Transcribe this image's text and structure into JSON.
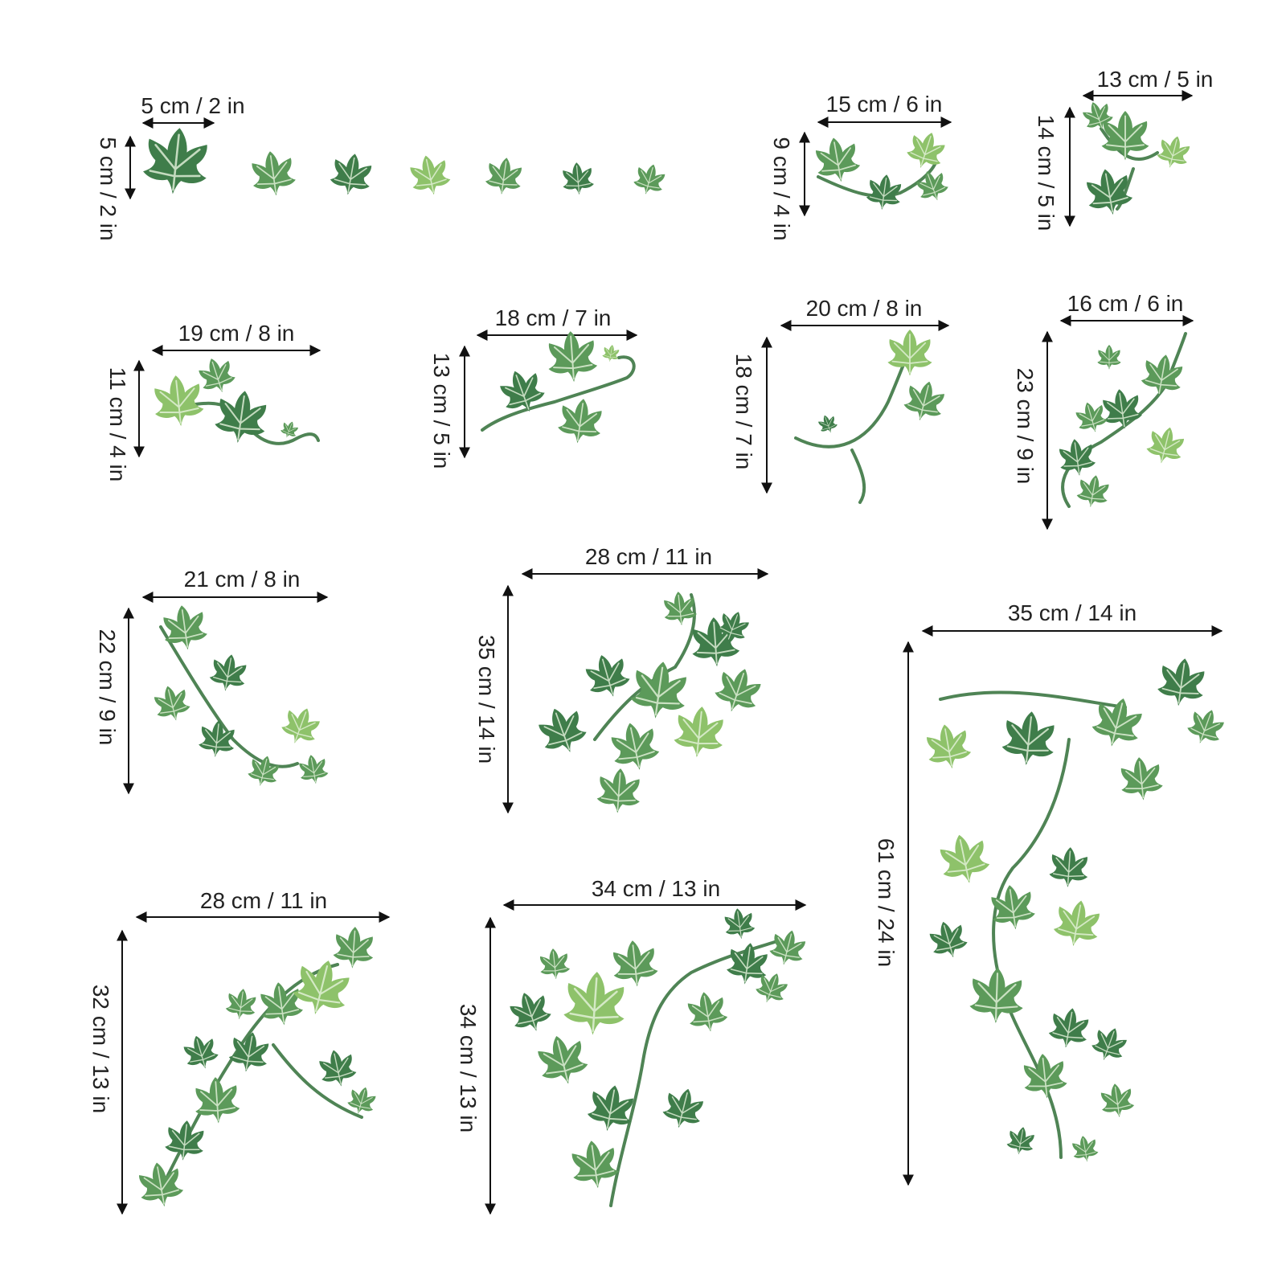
{
  "colors": {
    "leaf_dark": "#3f7d4a",
    "leaf_mid": "#5c9a5a",
    "leaf_light": "#8ec26a",
    "vein": "#e6f2dc",
    "stem": "#4f8455",
    "dimension_line": "#111111"
  },
  "icon": "ivy-leaf-icon",
  "decals": [
    {
      "id": "set-small-leaves",
      "width_label": "5 cm / 2 in",
      "height_label": "5 cm / 2 in"
    },
    {
      "id": "sprig-a",
      "width_label": "15 cm / 6 in",
      "height_label": "9 cm / 4 in"
    },
    {
      "id": "sprig-b",
      "width_label": "13 cm / 5 in",
      "height_label": "14 cm / 5 in"
    },
    {
      "id": "vine-c",
      "width_label": "19 cm / 8 in",
      "height_label": "11 cm / 4 in"
    },
    {
      "id": "vine-d",
      "width_label": "18 cm / 7 in",
      "height_label": "13 cm / 5 in"
    },
    {
      "id": "vine-e",
      "width_label": "20 cm / 8 in",
      "height_label": "18 cm / 7 in"
    },
    {
      "id": "vine-f",
      "width_label": "16 cm / 6 in",
      "height_label": "23 cm / 9 in"
    },
    {
      "id": "vine-g",
      "width_label": "21 cm / 8 in",
      "height_label": "22 cm / 9 in"
    },
    {
      "id": "cluster-h",
      "width_label": "28 cm / 11 in",
      "height_label": "35 cm / 14 in"
    },
    {
      "id": "vine-i",
      "width_label": "35 cm / 14 in",
      "height_label": "61 cm / 24 in"
    },
    {
      "id": "vine-j",
      "width_label": "28 cm / 11 in",
      "height_label": "32 cm / 13 in"
    },
    {
      "id": "vine-k",
      "width_label": "34 cm / 13 in",
      "height_label": "34 cm / 13 in"
    }
  ]
}
